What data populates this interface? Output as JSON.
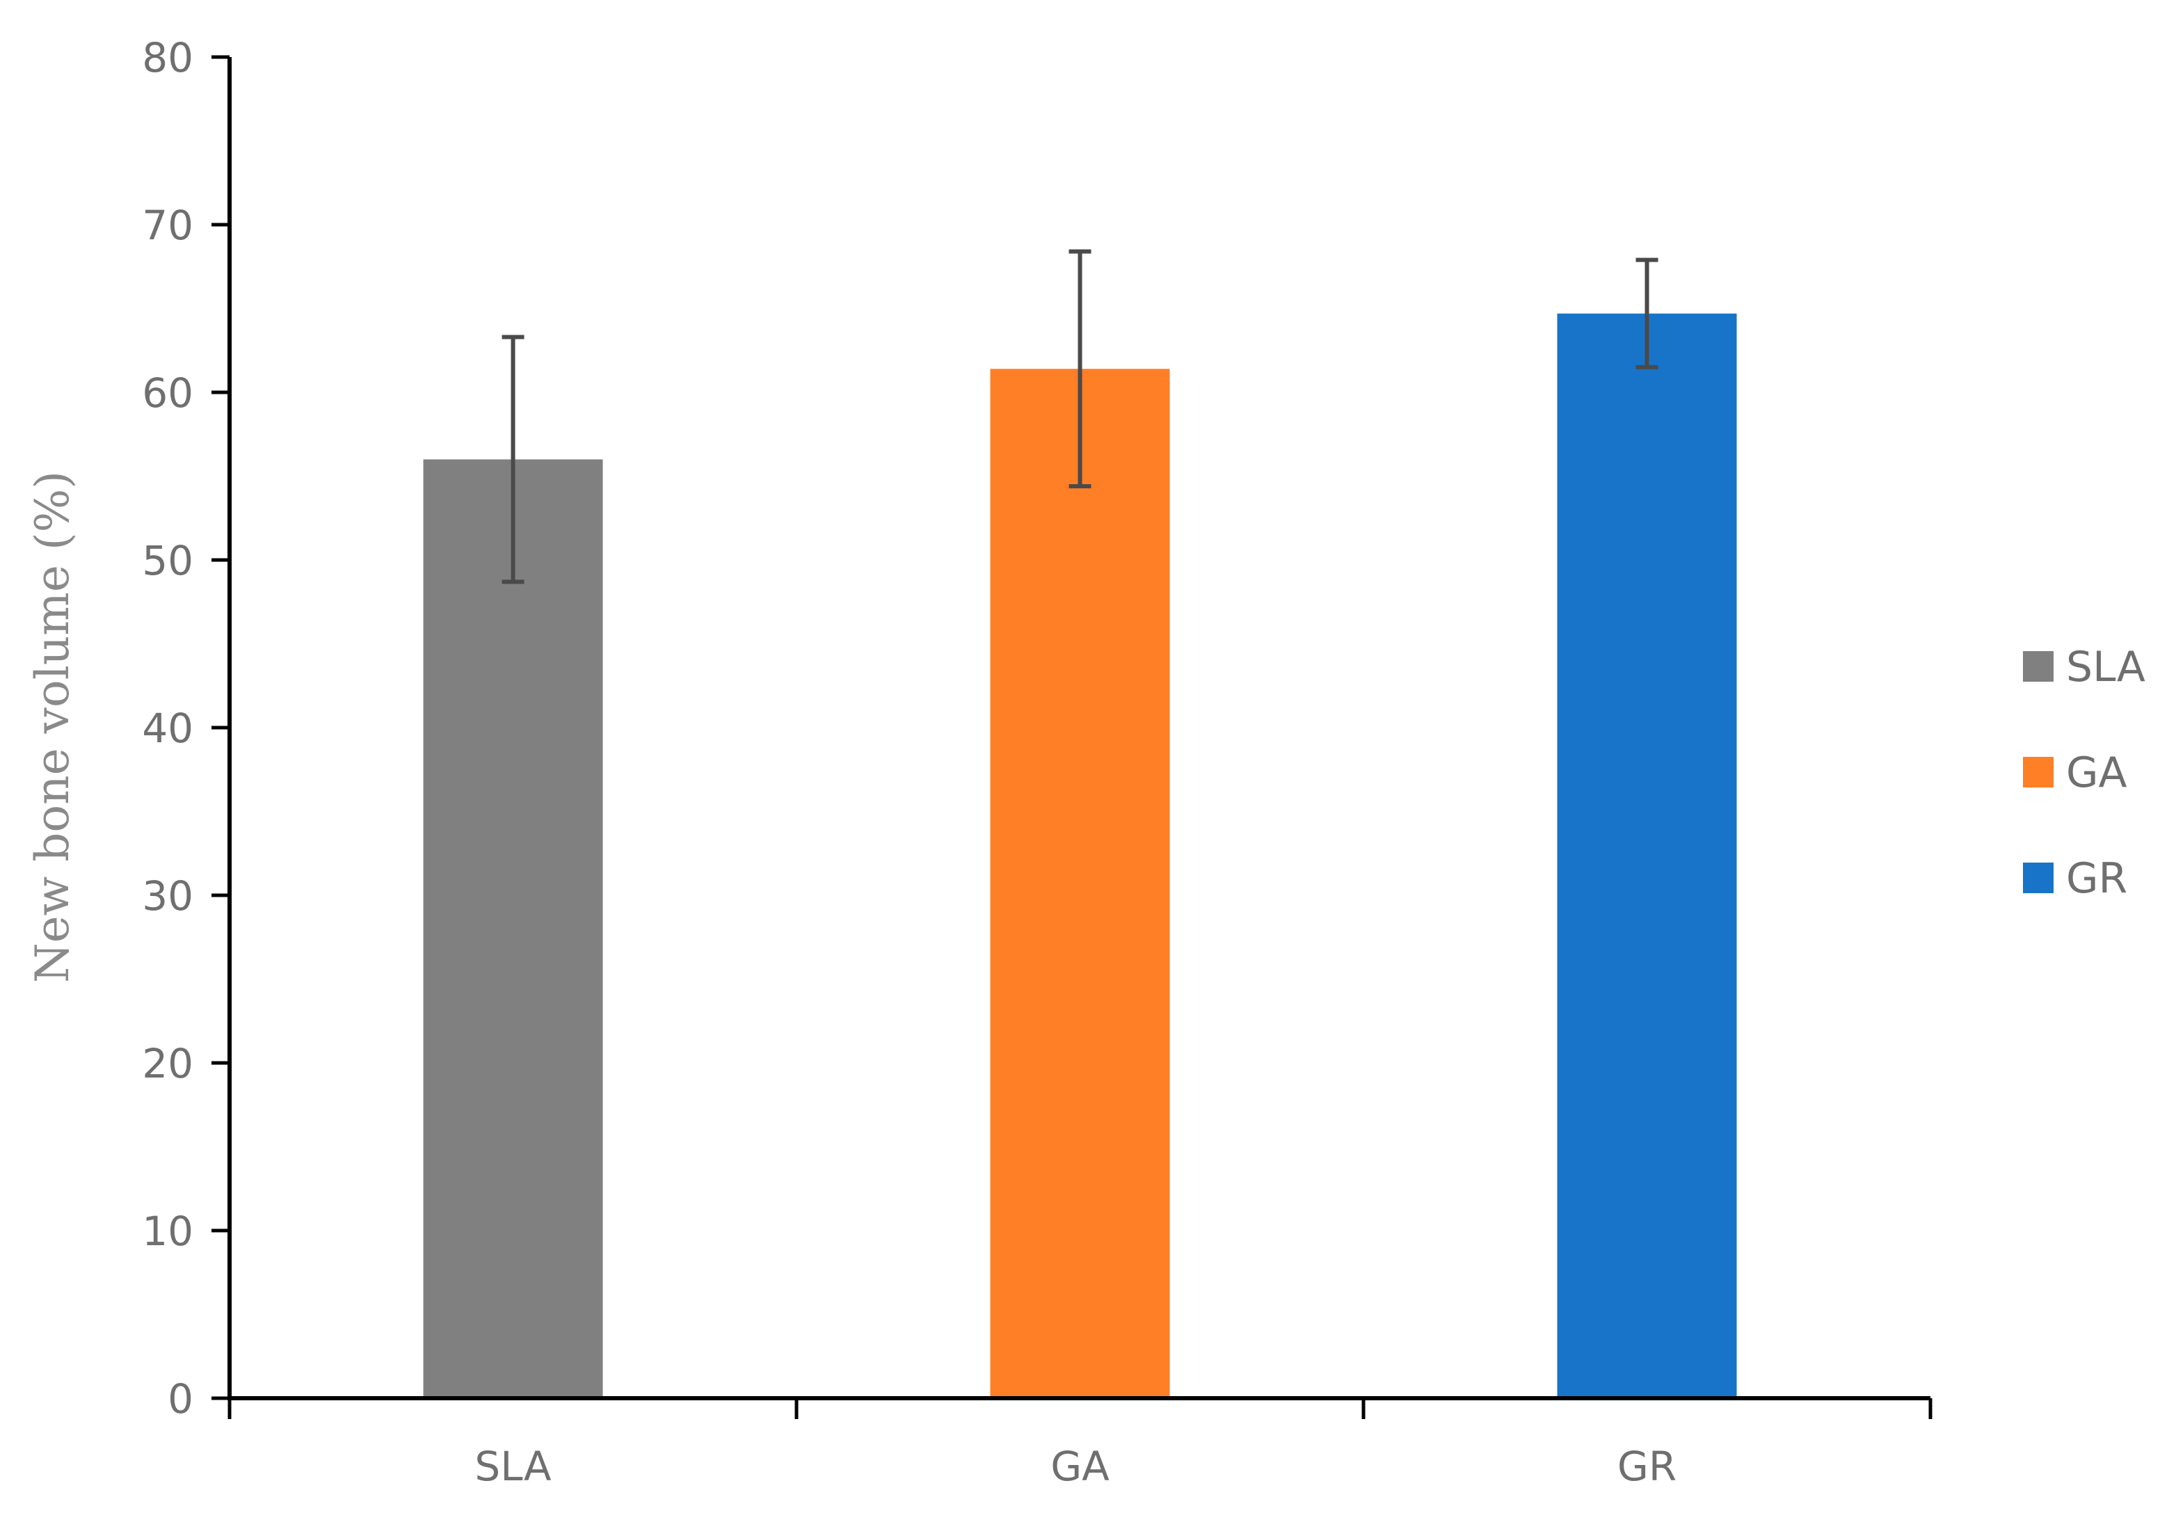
{
  "chart_data": {
    "type": "bar",
    "title": "",
    "xlabel": "",
    "ylabel": "New bone volume (%)",
    "categories": [
      "SLA",
      "GA",
      "GR"
    ],
    "values": [
      56.0,
      61.4,
      64.7
    ],
    "error": [
      7.3,
      7.0,
      3.2
    ],
    "colors": [
      "#808080",
      "#FF7F27",
      "#1874C8"
    ],
    "ylim": [
      0,
      80
    ],
    "yticks": [
      0,
      10,
      20,
      30,
      40,
      50,
      60,
      70,
      80
    ],
    "grid": false,
    "legend": {
      "position": "right",
      "entries": [
        "SLA",
        "GA",
        "GR"
      ]
    },
    "axis_color": "#000000",
    "error_bar_color": "#4a4a4a",
    "text_color": "#6f6f6f"
  }
}
